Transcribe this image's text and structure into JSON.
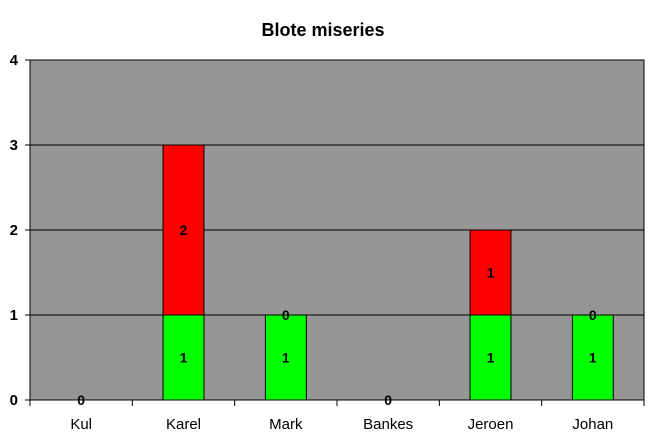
{
  "chart_data": {
    "type": "bar",
    "stacked": true,
    "title": "Blote miseries",
    "xlabel": "",
    "ylabel": "",
    "categories": [
      "Kul",
      "Karel",
      "Mark",
      "Bankes",
      "Jeroen",
      "Johan"
    ],
    "ylim": [
      0,
      4
    ],
    "yticks": [
      "0",
      "1",
      "2",
      "3",
      "4"
    ],
    "grid": true,
    "legend": "none",
    "plot_background": "#969696",
    "series": [
      {
        "color": "#00ff00",
        "values": [
          0,
          1,
          1,
          0,
          1,
          1
        ],
        "labels": [
          "0",
          "1",
          "1",
          "0",
          "1",
          "1"
        ]
      },
      {
        "color": "#ff0000",
        "values": [
          0,
          2,
          0,
          0,
          1,
          0
        ],
        "labels": [
          "",
          "2",
          "0",
          "",
          "1",
          "0"
        ]
      }
    ]
  }
}
